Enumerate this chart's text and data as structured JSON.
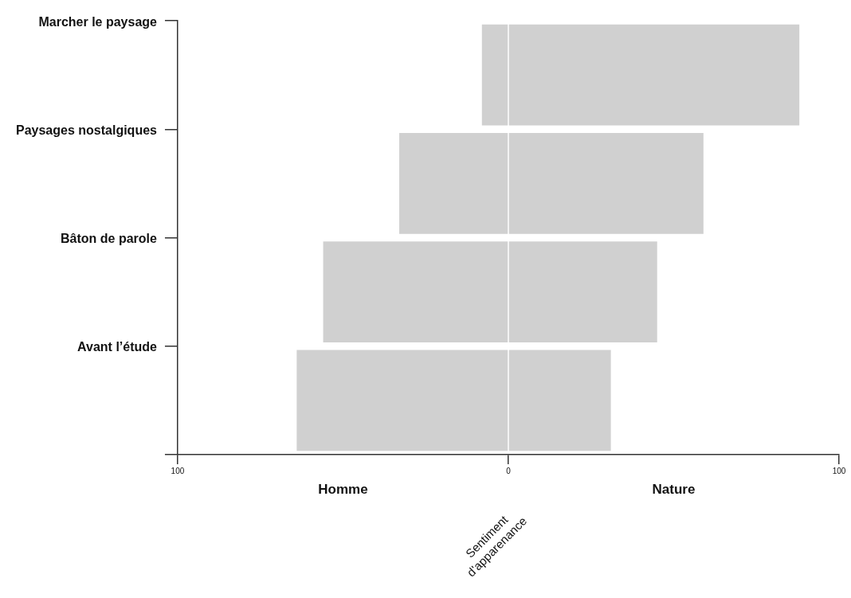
{
  "chart_data": {
    "type": "bar",
    "orientation": "horizontal",
    "stacked": true,
    "categories": [
      "Marcher le paysage",
      "Paysages nostalgiques",
      "Bâton de parole",
      "Avant l’étude"
    ],
    "series": [
      {
        "name": "Homme",
        "color": "#d0d0d0",
        "values": [
          -8,
          -33,
          -56,
          -64
        ]
      },
      {
        "name": "Nature",
        "color": "#d0d0d0",
        "values": [
          88,
          59,
          45,
          31
        ]
      }
    ],
    "xlabel": "Sentiment d'apparenance",
    "xlim": [
      -100,
      100
    ],
    "xticks": [
      {
        "value": -100,
        "label": "100"
      },
      0,
      100
    ],
    "grid": false,
    "legend": false
  }
}
